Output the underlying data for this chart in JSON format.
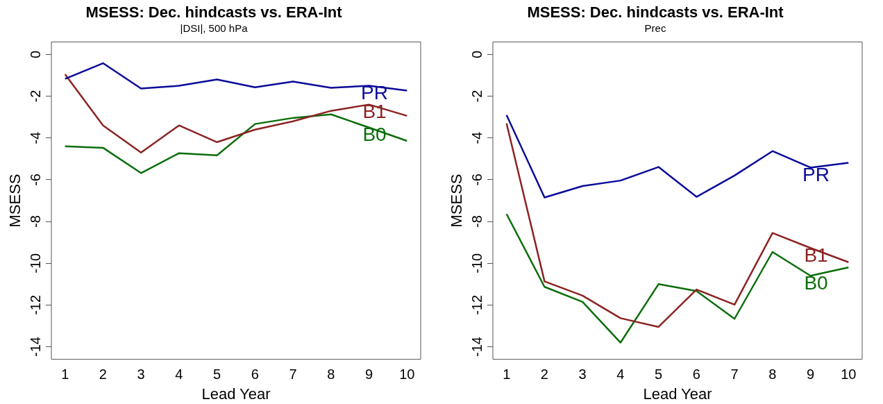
{
  "chart_data": [
    {
      "type": "line",
      "title": "MSESS: Dec. hindcasts vs. ERA-Int",
      "subtitle": "|DSI|, 500 hPa",
      "xlabel": "Lead Year",
      "ylabel": "MSESS",
      "x": [
        1,
        2,
        3,
        4,
        5,
        6,
        7,
        8,
        9,
        10
      ],
      "xlim": [
        0.64,
        10.36
      ],
      "xticks": [
        1,
        2,
        3,
        4,
        5,
        6,
        7,
        8,
        9,
        10
      ],
      "ylim": [
        -14.6,
        0.6
      ],
      "yticks": [
        0,
        -2,
        -4,
        -6,
        -8,
        -10,
        -12,
        -14
      ],
      "grid": false,
      "legend": false,
      "marker": "none",
      "line_style": "solid",
      "series": [
        {
          "name": "PR",
          "color": "#0a0a99",
          "values": [
            -1.17,
            -0.42,
            -1.63,
            -1.5,
            -1.2,
            -1.57,
            -1.3,
            -1.6,
            -1.5,
            -1.73
          ]
        },
        {
          "name": "B1",
          "color": "#8b2323",
          "values": [
            -0.95,
            -3.4,
            -4.7,
            -3.4,
            -4.2,
            -3.6,
            -3.2,
            -2.7,
            -2.4,
            -2.94
          ]
        },
        {
          "name": "B0",
          "color": "#0a6e0a",
          "values": [
            -4.4,
            -4.47,
            -5.68,
            -4.73,
            -4.83,
            -3.33,
            -3.04,
            -2.87,
            -3.5,
            -4.14
          ]
        }
      ]
    },
    {
      "type": "line",
      "title": "MSESS: Dec. hindcasts vs. ERA-Int",
      "subtitle": "Prec",
      "xlabel": "Lead Year",
      "ylabel": "MSESS",
      "x": [
        1,
        2,
        3,
        4,
        5,
        6,
        7,
        8,
        9,
        10
      ],
      "xlim": [
        0.64,
        10.36
      ],
      "xticks": [
        1,
        2,
        3,
        4,
        5,
        6,
        7,
        8,
        9,
        10
      ],
      "ylim": [
        -14.6,
        0.6
      ],
      "yticks": [
        0,
        -2,
        -4,
        -6,
        -8,
        -10,
        -12,
        -14
      ],
      "grid": false,
      "legend": false,
      "marker": "none",
      "line_style": "solid",
      "series": [
        {
          "name": "PR",
          "color": "#0a0a99",
          "values": [
            -2.9,
            -6.85,
            -6.3,
            -6.04,
            -5.39,
            -6.82,
            -5.8,
            -4.63,
            -5.42,
            -5.19
          ]
        },
        {
          "name": "B1",
          "color": "#8b2323",
          "values": [
            -3.3,
            -10.87,
            -11.55,
            -12.63,
            -13.05,
            -11.26,
            -11.98,
            -8.55,
            -9.27,
            -9.95
          ]
        },
        {
          "name": "B0",
          "color": "#0a6e0a",
          "values": [
            -7.64,
            -11.13,
            -11.85,
            -13.8,
            -11.0,
            -11.33,
            -12.66,
            -9.46,
            -10.6,
            -10.2
          ]
        }
      ]
    }
  ]
}
